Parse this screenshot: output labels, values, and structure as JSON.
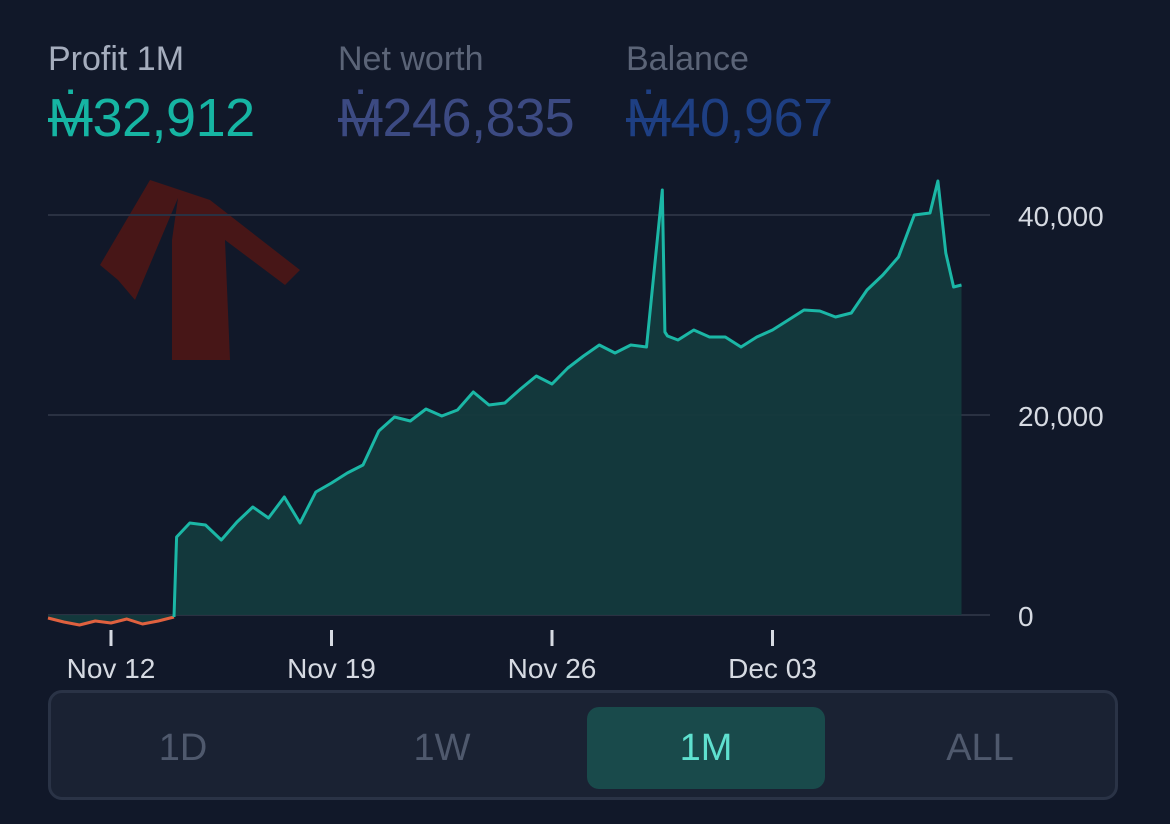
{
  "stats": {
    "profit": {
      "label": "Profit 1M",
      "symbol": "Ṁ",
      "amount": "32,912"
    },
    "net_worth": {
      "label": "Net worth",
      "symbol": "Ṁ",
      "amount": "246,835"
    },
    "balance": {
      "label": "Balance",
      "symbol": "Ṁ",
      "amount": "40,967"
    }
  },
  "tabs": [
    {
      "label": "1D",
      "active": false
    },
    {
      "label": "1W",
      "active": false
    },
    {
      "label": "1M",
      "active": true
    },
    {
      "label": "ALL",
      "active": false
    }
  ],
  "colors": {
    "background": "#111829",
    "line_positive": "#1bb7a6",
    "line_negative": "#e0613f",
    "area_fill": "#143a3d",
    "grid": "#2a3142"
  },
  "chart_data": {
    "type": "area",
    "x_tick_labels": [
      "Nov 12",
      "Nov 19",
      "Nov 26",
      "Dec 03"
    ],
    "y_tick_labels": [
      "0",
      "20,000",
      "40,000"
    ],
    "ylim": [
      0,
      43000
    ],
    "xlim": [
      "2023-11-10",
      "2023-12-09"
    ],
    "grid": true,
    "y_axis_side": "right",
    "series": [
      {
        "x": [
          "2023-11-10",
          "2023-11-10T12:00",
          "2023-11-11",
          "2023-11-11T12:00",
          "2023-11-12",
          "2023-11-12T12:00",
          "2023-11-13",
          "2023-11-13T12:00",
          "2023-11-14",
          "2023-11-14T02:00",
          "2023-11-14T12:00",
          "2023-11-15",
          "2023-11-15T12:00",
          "2023-11-16",
          "2023-11-16T12:00",
          "2023-11-17",
          "2023-11-17T12:00",
          "2023-11-18",
          "2023-11-18T12:00",
          "2023-11-19",
          "2023-11-19T12:00",
          "2023-11-20",
          "2023-11-20T12:00",
          "2023-11-21",
          "2023-11-21T12:00",
          "2023-11-22",
          "2023-11-22T12:00",
          "2023-11-23",
          "2023-11-23T12:00",
          "2023-11-24",
          "2023-11-24T12:00",
          "2023-11-25",
          "2023-11-25T12:00",
          "2023-11-26",
          "2023-11-26T12:00",
          "2023-11-27",
          "2023-11-27T12:00",
          "2023-11-28",
          "2023-11-28T12:00",
          "2023-11-29",
          "2023-11-29T12:00",
          "2023-11-29T14:00",
          "2023-11-29T16:00",
          "2023-11-30",
          "2023-11-30T12:00",
          "2023-12-01",
          "2023-12-01T12:00",
          "2023-12-02",
          "2023-12-02T12:00",
          "2023-12-03",
          "2023-12-03T12:00",
          "2023-12-04",
          "2023-12-04T12:00",
          "2023-12-05",
          "2023-12-05T12:00",
          "2023-12-06",
          "2023-12-06T12:00",
          "2023-12-07",
          "2023-12-07T12:00",
          "2023-12-08",
          "2023-12-08T06:00",
          "2023-12-08T12:00",
          "2023-12-08T18:00",
          "2023-12-09"
        ],
        "y": [
          -300,
          -700,
          -1000,
          -600,
          -800,
          -400,
          -900,
          -600,
          -200,
          7800,
          9200,
          9000,
          7500,
          9300,
          10800,
          9700,
          11800,
          9200,
          12300,
          13200,
          14200,
          15000,
          18400,
          19800,
          19400,
          20600,
          19900,
          20500,
          22300,
          21000,
          21200,
          22600,
          23900,
          23100,
          24700,
          25900,
          27000,
          26200,
          27000,
          26800,
          42500,
          28300,
          27900,
          27500,
          28500,
          27800,
          27800,
          26800,
          27800,
          28500,
          29500,
          30500,
          30400,
          29800,
          30200,
          32500,
          34000,
          35800,
          40000,
          40200,
          43400,
          36200,
          32800,
          33000
        ],
        "color": "#1bb7a6"
      }
    ]
  }
}
